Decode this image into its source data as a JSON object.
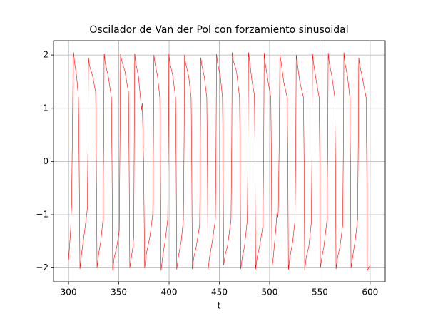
{
  "chart_data": {
    "type": "line",
    "title": "Oscilador de Van der Pol con forzamiento sinusoidal",
    "xlabel": "t",
    "xlim": [
      285,
      615
    ],
    "ylim": [
      -2.26,
      2.27
    ],
    "xticks": [
      300,
      350,
      400,
      450,
      500,
      550,
      600
    ],
    "yticks": [
      {
        "value": -2,
        "label": "−2"
      },
      {
        "value": -1,
        "label": "−1"
      },
      0,
      1,
      2
    ],
    "grid": true,
    "series": [
      {
        "color": "#ff0000",
        "x": [
          300,
          302,
          303,
          303.8,
          304.5,
          305,
          306,
          308,
          309.8,
          310.5,
          311.3,
          312.8,
          316,
          318.6,
          319.3,
          319.8,
          320.8,
          324,
          326.9,
          327.6,
          328.3,
          329.8,
          332,
          334.2,
          334.9,
          335.4,
          336.4,
          339.5,
          342.6,
          343.2,
          343.9,
          345.4,
          348,
          350.4,
          351.1,
          351.7,
          352.7,
          356,
          359.6,
          360.2,
          360.9,
          362.4,
          364,
          364.8,
          365.3,
          365.8,
          366.8,
          369.5,
          371.5,
          372.5,
          373.3,
          374.6,
          375.7,
          377.2,
          381,
          383.7,
          384.4,
          384.9,
          385.9,
          388.5,
          390.8,
          391.4,
          392.0,
          393.5,
          396,
          398.6,
          399.3,
          399.8,
          400.8,
          403.8,
          406.4,
          407.0,
          407.6,
          409.1,
          412,
          414.2,
          414.9,
          415.4,
          416.4,
          419.5,
          421.9,
          422.5,
          423.1,
          424.6,
          427,
          430.4,
          431.1,
          431.6,
          432.6,
          435,
          437.5,
          438.1,
          438.7,
          440.2,
          443,
          446,
          446.7,
          447.2,
          448.2,
          451,
          453.1,
          453.7,
          454.3,
          455.8,
          458,
          461.6,
          462.3,
          462.8,
          463.8,
          467,
          470.1,
          470.7,
          471.3,
          472.8,
          475,
          477.8,
          478.5,
          479,
          480,
          482.5,
          484.9,
          485.5,
          486.1,
          487.6,
          490,
          493.4,
          494.1,
          494.6,
          495.6,
          498.5,
          501.2,
          501.8,
          502.4,
          503.9,
          506,
          507.4,
          508.2,
          508.6,
          509.5,
          510.2,
          511.2,
          514,
          517.5,
          518.1,
          518.7,
          520.2,
          523,
          525.3,
          526,
          526.5,
          527.5,
          530,
          533.7,
          534.3,
          534.9,
          536.4,
          539,
          541.5,
          542.2,
          542.7,
          543.7,
          546.5,
          549.3,
          549.9,
          550.5,
          552,
          554,
          557.1,
          557.8,
          558.3,
          559.3,
          562,
          564.9,
          565.5,
          566.1,
          567.6,
          570,
          572.7,
          573.4,
          573.9,
          574.9,
          577.5,
          579.8,
          580.4,
          581,
          582.5,
          585,
          587.5,
          588.2,
          588.7,
          589.7,
          592,
          596,
          596.6,
          597.2,
          598.5,
          600
        ],
        "values": [
          -1.85,
          -1.3,
          -0.8,
          0.5,
          1.9,
          2.05,
          1.85,
          1.6,
          1.2,
          0,
          -2.02,
          -1.75,
          -1.3,
          -0.9,
          0.3,
          1.95,
          1.8,
          1.6,
          1.3,
          0,
          -2.0,
          -1.75,
          -1.5,
          -1.1,
          0.3,
          2.03,
          1.85,
          1.6,
          1.2,
          0,
          -2.05,
          -1.8,
          -1.6,
          -1.3,
          0.3,
          2.03,
          1.9,
          1.7,
          1.3,
          0,
          -2.0,
          -1.8,
          -1.6,
          -1.4,
          0.3,
          2.03,
          1.85,
          1.6,
          1.2,
          0.97,
          1.1,
          0,
          -2.0,
          -1.75,
          -1.4,
          -1.0,
          0.3,
          2.0,
          1.85,
          1.6,
          1.2,
          0,
          -2.05,
          -1.8,
          -1.5,
          -1.1,
          0.3,
          2.02,
          1.85,
          1.6,
          1.2,
          0,
          -2.03,
          -1.8,
          -1.5,
          -1.1,
          0.3,
          2.0,
          1.85,
          1.6,
          1.2,
          0,
          -2.02,
          -1.8,
          -1.6,
          -1.2,
          0.3,
          1.95,
          1.8,
          1.6,
          1.2,
          0,
          -2.05,
          -1.8,
          -1.5,
          -1.1,
          0.3,
          2.02,
          1.85,
          1.6,
          1.2,
          0,
          -1.95,
          -1.75,
          -1.6,
          -1.1,
          0.3,
          2.05,
          1.9,
          1.7,
          1.2,
          0,
          -2.02,
          -1.8,
          -1.6,
          -1.1,
          0.3,
          2.05,
          1.9,
          1.5,
          1.25,
          0,
          -2.02,
          -1.8,
          -1.6,
          -1.2,
          0.3,
          2.04,
          1.85,
          1.5,
          1.2,
          0,
          -2.0,
          -1.75,
          -1.3,
          -0.95,
          -1.05,
          -0.93,
          0.3,
          2.0,
          1.9,
          1.5,
          1.2,
          0,
          -2.03,
          -1.8,
          -1.5,
          -1.1,
          0.3,
          2.0,
          1.85,
          1.5,
          1.2,
          0,
          -2.05,
          -1.8,
          -1.6,
          -1.15,
          0.3,
          2.02,
          1.85,
          1.5,
          1.2,
          0,
          -2.0,
          -1.8,
          -1.6,
          -1.1,
          0.3,
          2.04,
          1.85,
          1.6,
          1.2,
          0,
          -2.02,
          -1.8,
          -1.6,
          -1.2,
          0.3,
          2.05,
          1.85,
          1.6,
          1.2,
          0,
          -2.0,
          -1.8,
          -1.5,
          -1.1,
          0.3,
          1.95,
          1.8,
          1.6,
          1.2,
          0,
          -2.05,
          -2.0,
          -1.95
        ]
      }
    ]
  }
}
